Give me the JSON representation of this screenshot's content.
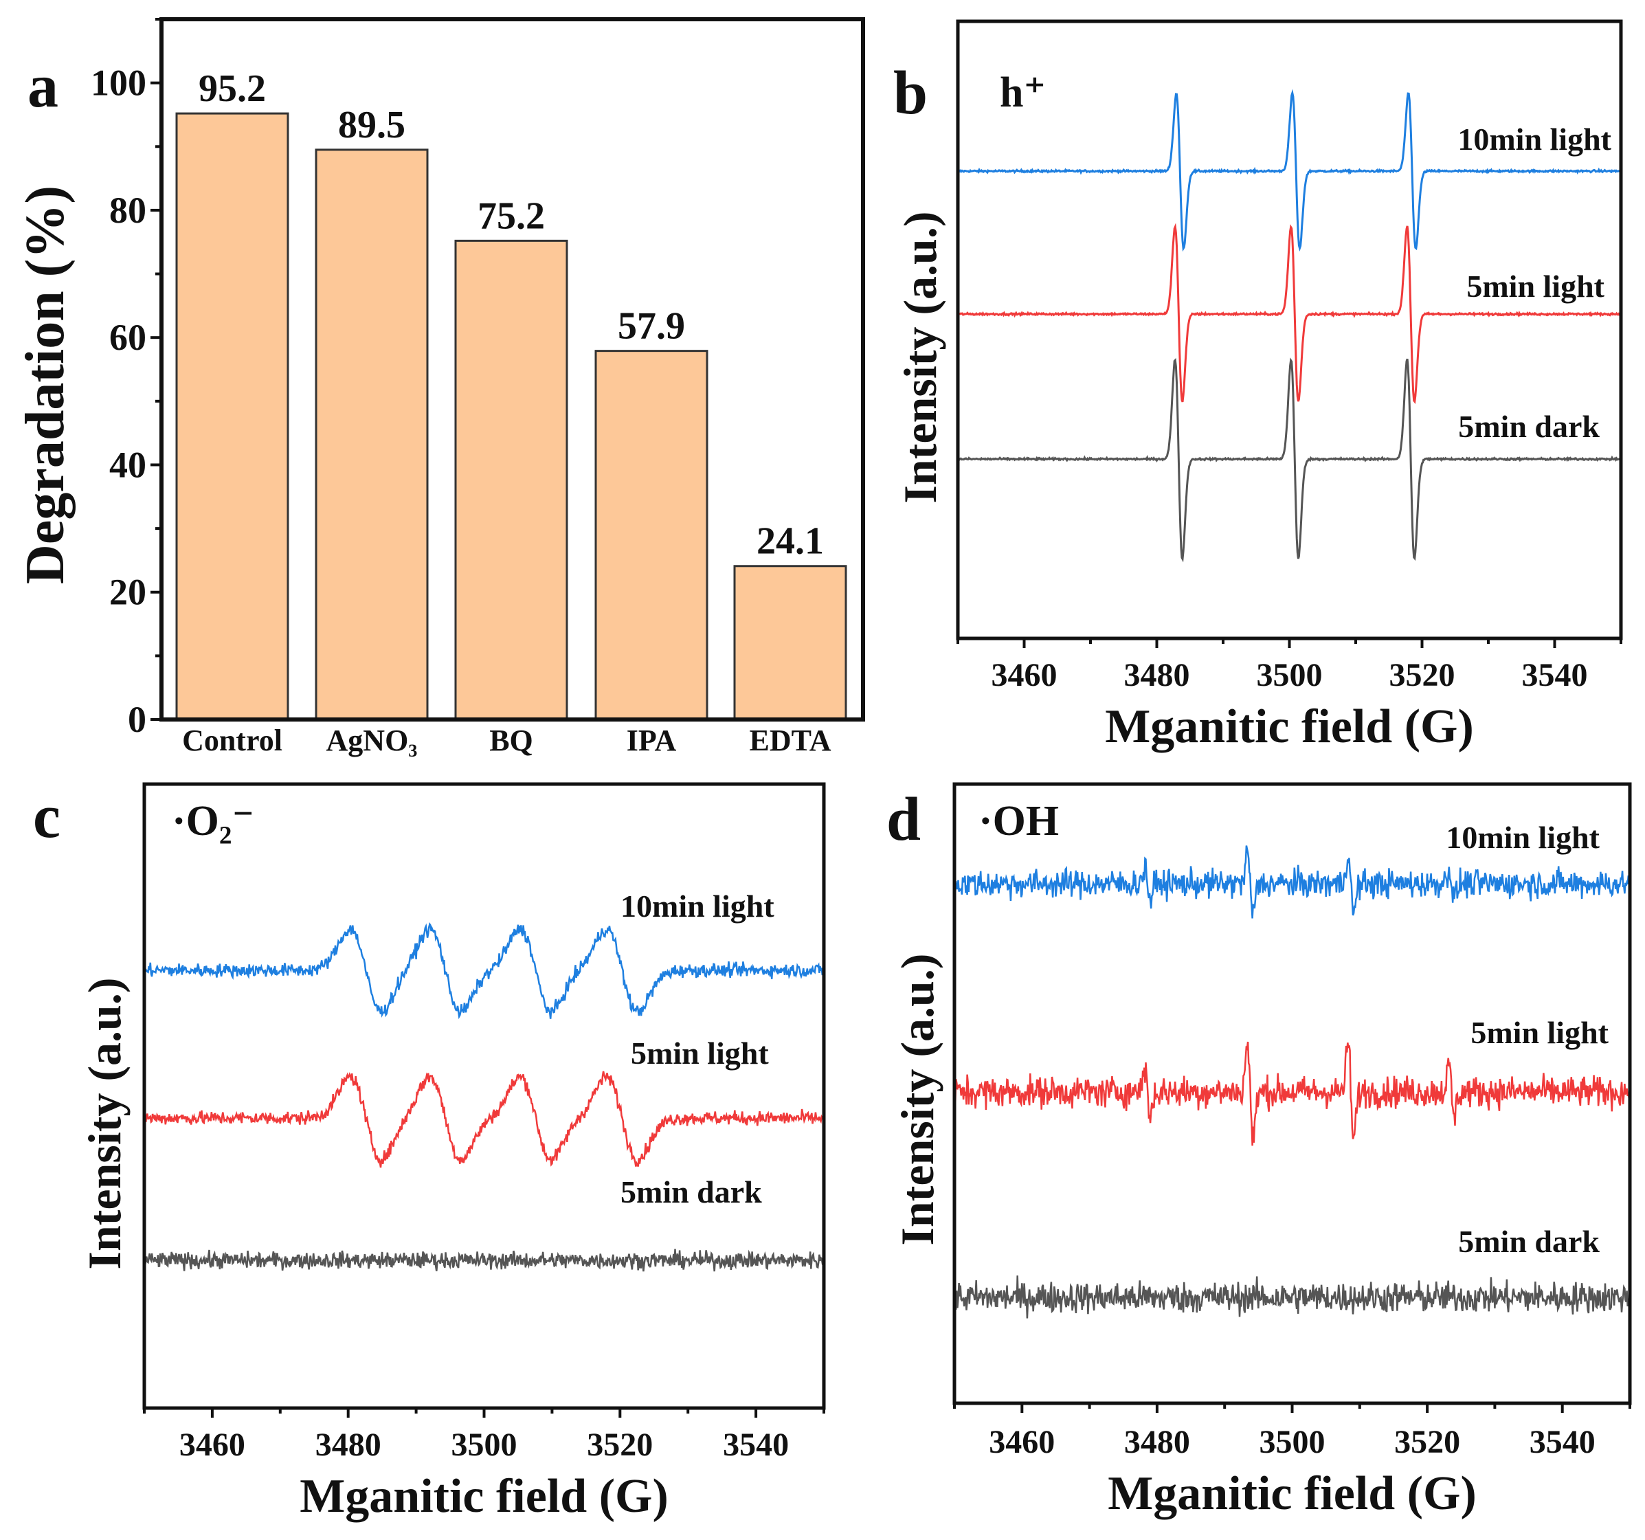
{
  "chart_data": [
    {
      "panel": "a",
      "type": "bar",
      "categories": [
        "Control",
        "AgNO₃",
        "BQ",
        "IPA",
        "EDTA"
      ],
      "values": [
        95.2,
        89.5,
        75.2,
        57.9,
        24.1
      ],
      "value_labels": [
        "95.2",
        "89.5",
        "75.2",
        "57.9",
        "24.1"
      ],
      "xlabel": "",
      "ylabel": "Degradation (%)",
      "ylim": [
        0,
        110
      ],
      "yticks": [
        "0",
        "20",
        "40",
        "60",
        "80",
        "100"
      ],
      "bar_color": "#FDC898"
    },
    {
      "panel": "b",
      "type": "line",
      "annotation": "h⁺",
      "xlabel": "Mganitic field (G)",
      "ylabel": "Intensity (a.u.)",
      "xlim": [
        3450,
        3550
      ],
      "xticks": [
        "3460",
        "3480",
        "3500",
        "3520",
        "3540"
      ],
      "series": [
        {
          "name": "10min light",
          "color": "#1E7FE0",
          "peaks_G": [
            3483.5,
            3501,
            3518.5
          ],
          "rel_amplitude": [
            0.78,
            0.78,
            0.78
          ],
          "linewidth_G": 0.55,
          "noise": 0.01
        },
        {
          "name": "5min light",
          "color": "#F03A3A",
          "peaks_G": [
            3483.3,
            3500.8,
            3518.3
          ],
          "rel_amplitude": [
            0.88,
            0.88,
            0.88
          ],
          "linewidth_G": 0.55,
          "noise": 0.01
        },
        {
          "name": "5min dark",
          "color": "#555555",
          "peaks_G": [
            3483.3,
            3500.8,
            3518.3
          ],
          "rel_amplitude": [
            1.0,
            1.0,
            1.0
          ],
          "linewidth_G": 0.55,
          "noise": 0.01
        }
      ]
    },
    {
      "panel": "c",
      "type": "line",
      "annotation": "·O₂⁻",
      "xlabel": "Mganitic field (G)",
      "ylabel": "Intensity (a.u.)",
      "xlim": [
        3450,
        3550
      ],
      "xticks": [
        "3460",
        "3480",
        "3500",
        "3520",
        "3540"
      ],
      "series": [
        {
          "name": "10min light",
          "color": "#1E7FE0",
          "peaks_G": [
            3482.6,
            3494.3,
            3507.6,
            3520.3
          ],
          "rel_amplitude": [
            1,
            1,
            1,
            1
          ],
          "linewidth_G": 2.3,
          "noise": 0.16
        },
        {
          "name": "5min light",
          "color": "#F03A3A",
          "peaks_G": [
            3482.6,
            3494.3,
            3507.6,
            3520.3
          ],
          "rel_amplitude": [
            1,
            1,
            1,
            1
          ],
          "linewidth_G": 2.3,
          "noise": 0.16
        },
        {
          "name": "5min dark",
          "color": "#555555",
          "peaks_G": [],
          "rel_amplitude": [],
          "linewidth_G": 2.3,
          "noise": 0.2
        }
      ]
    },
    {
      "panel": "d",
      "type": "line",
      "annotation": "·OH",
      "xlabel": "Mganitic field (G)",
      "ylabel": "Intensity (a.u.)",
      "xlim": [
        3450,
        3550
      ],
      "xticks": [
        "3460",
        "3480",
        "3500",
        "3520",
        "3540"
      ],
      "series": [
        {
          "name": "10min light",
          "color": "#1E7FE0",
          "peaks_G": [
            3478.6,
            3493.8,
            3508.7,
            3523.6
          ],
          "rel_amplitude": [
            0.5,
            1,
            1,
            0.5
          ],
          "linewidth_G": 0.4,
          "noise": 0.45
        },
        {
          "name": "5min light",
          "color": "#F03A3A",
          "peaks_G": [
            3478.6,
            3493.8,
            3508.7,
            3523.6
          ],
          "rel_amplitude": [
            0.8,
            1.6,
            1.6,
            0.8
          ],
          "linewidth_G": 0.4,
          "noise": 0.5
        },
        {
          "name": "5min dark",
          "color": "#555555",
          "peaks_G": [],
          "rel_amplitude": [],
          "linewidth_G": 0.4,
          "noise": 0.5
        }
      ]
    }
  ]
}
